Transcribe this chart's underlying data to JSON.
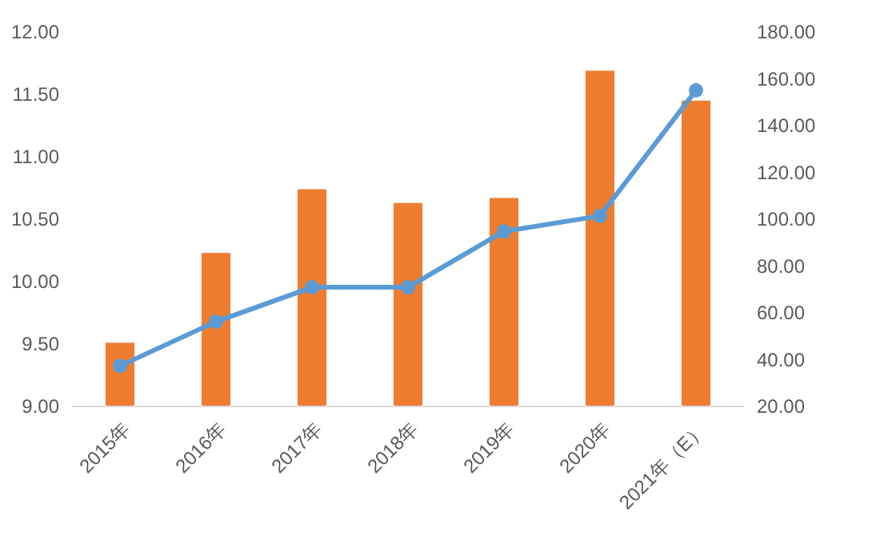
{
  "chart_data": {
    "type": "bar",
    "categories": [
      "2015年",
      "2016年",
      "2017年",
      "2018年",
      "2019年",
      "2020年",
      "2021年（E）"
    ],
    "series": [
      {
        "color": "#ed7d31",
        "values": [
          9.51,
          10.23,
          10.74,
          10.63,
          10.67,
          11.69,
          11.45
        ]
      },
      {
        "type": "line",
        "axis": "y2",
        "color": "#5b9bd5",
        "marker": "circle",
        "values": [
          37.3,
          56.2,
          70.9,
          70.9,
          94.8,
          101.4,
          155.1
        ]
      }
    ],
    "ylim": [
      9,
      12
    ],
    "yticks": [
      {
        "value": 9,
        "label": "9.00"
      },
      {
        "value": 9.5,
        "label": "9.50"
      },
      {
        "value": 10,
        "label": "10.00"
      },
      {
        "value": 10.5,
        "label": "10.50"
      },
      {
        "value": 11,
        "label": "11.00"
      },
      {
        "value": 11.5,
        "label": "11.50"
      },
      {
        "value": 12,
        "label": "12.00"
      }
    ],
    "y2lim": [
      20,
      180
    ],
    "y2ticks": [
      {
        "value": 20,
        "label": "20.00"
      },
      {
        "value": 40,
        "label": "40.00"
      },
      {
        "value": 60,
        "label": "60.00"
      },
      {
        "value": 80,
        "label": "80.00"
      },
      {
        "value": 100,
        "label": "100.00"
      },
      {
        "value": 120,
        "label": "120.00"
      },
      {
        "value": 140,
        "label": "140.00"
      },
      {
        "value": 160,
        "label": "160.00"
      },
      {
        "value": 180,
        "label": "180.00"
      }
    ],
    "grid": false
  }
}
